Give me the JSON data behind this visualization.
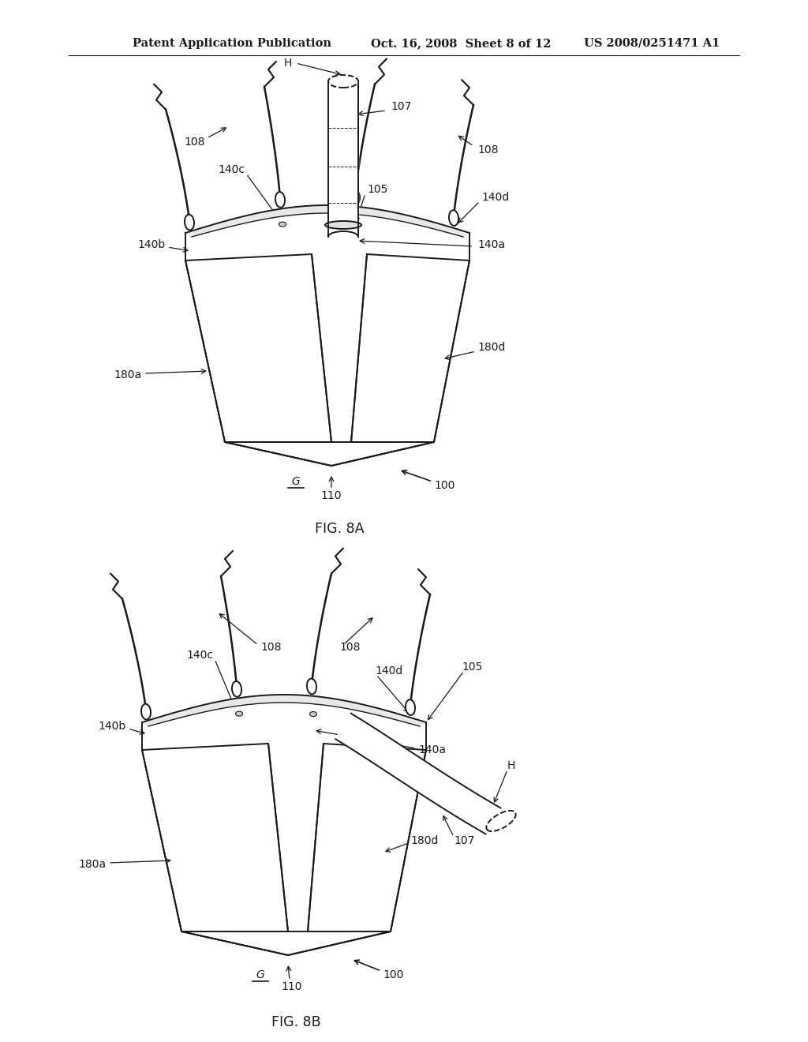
{
  "bg_color": "#ffffff",
  "line_color": "#1a1a1a",
  "header_left": "Patent Application Publication",
  "header_mid": "Oct. 16, 2008  Sheet 8 of 12",
  "header_right": "US 2008/0251471 A1",
  "fig8a_label": "FIG. 8A",
  "fig8b_label": "FIG. 8B",
  "header_fontsize": 10.5,
  "label_fontsize": 10,
  "caption_fontsize": 12.5
}
